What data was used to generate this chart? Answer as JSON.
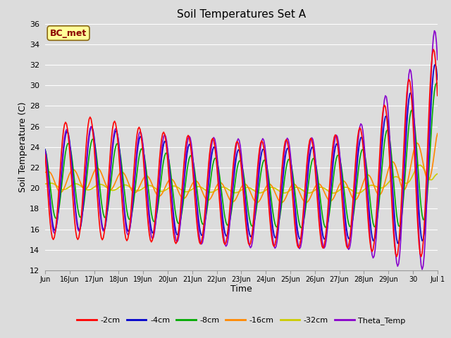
{
  "title": "Soil Temperatures Set A",
  "xlabel": "Time",
  "ylabel": "Soil Temperature (C)",
  "ylim": [
    12,
    36
  ],
  "yticks": [
    12,
    14,
    16,
    18,
    20,
    22,
    24,
    26,
    28,
    30,
    32,
    34,
    36
  ],
  "bg_color": "#dcdcdc",
  "plot_bg_color": "#dcdcdc",
  "grid_color": "white",
  "annotation_text": "BC_met",
  "annotation_bg": "#ffff99",
  "annotation_border": "#8B6914",
  "series": {
    "-2cm": {
      "color": "#ff0000",
      "linewidth": 1.2
    },
    "-4cm": {
      "color": "#0000cc",
      "linewidth": 1.2
    },
    "-8cm": {
      "color": "#00aa00",
      "linewidth": 1.2
    },
    "-16cm": {
      "color": "#ff8800",
      "linewidth": 1.2
    },
    "-32cm": {
      "color": "#cccc00",
      "linewidth": 1.2
    },
    "Theta_Temp": {
      "color": "#8800cc",
      "linewidth": 1.2
    }
  },
  "xtick_labels": [
    "Jun",
    "16Jun",
    "17Jun",
    "18Jun",
    "19Jun",
    "20Jun",
    "21Jun",
    "22Jun",
    "23Jun",
    "24Jun",
    "25Jun",
    "26Jun",
    "27Jun",
    "28Jun",
    "29Jun",
    "30",
    "Jul 1"
  ],
  "legend_order": [
    "-2cm",
    "-4cm",
    "-8cm",
    "-16cm",
    "-32cm",
    "Theta_Temp"
  ]
}
